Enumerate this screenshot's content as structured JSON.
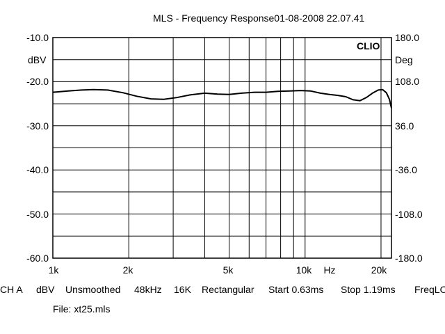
{
  "chart_data": {
    "type": "line",
    "title": "MLS - Frequency Response01-08-2008 22.07.41",
    "brand": "CLIO",
    "y_left_unit": "dBV",
    "y_right_unit": "Deg",
    "x_unit": "Hz",
    "x_scale": "log",
    "xlim": [
      1000,
      22000
    ],
    "ylim": [
      -60,
      -10
    ],
    "y_right_lim": [
      -180,
      180
    ],
    "grid": true,
    "y_ticks_left": [
      "-10.0",
      "-20.0",
      "-30.0",
      "-40.0",
      "-50.0",
      "-60.0"
    ],
    "y_ticks_right": [
      "180.0",
      "108.0",
      "36.0",
      "-36.0",
      "-108.0",
      "-180.0"
    ],
    "x_tick_labels": [
      {
        "value": 1000,
        "label": "1k"
      },
      {
        "value": 2000,
        "label": "2k"
      },
      {
        "value": 5000,
        "label": "5k"
      },
      {
        "value": 10000,
        "label": "10k"
      },
      {
        "value": 20000,
        "label": "20k"
      }
    ],
    "series": [
      {
        "color": "#000000",
        "x": [
          1000,
          1150,
          1300,
          1450,
          1650,
          1900,
          2150,
          2450,
          2750,
          3100,
          3500,
          4000,
          4500,
          5000,
          5600,
          6300,
          7000,
          7800,
          8700,
          9600,
          10500,
          11500,
          12500,
          13500,
          14500,
          15500,
          16500,
          17500,
          18500,
          19500,
          20300,
          21000,
          21600,
          22000
        ],
        "values": [
          -22.4,
          -22.1,
          -21.9,
          -21.8,
          -21.9,
          -22.5,
          -23.3,
          -23.9,
          -24.0,
          -23.6,
          -23.0,
          -22.6,
          -22.8,
          -22.9,
          -22.6,
          -22.4,
          -22.4,
          -22.2,
          -22.1,
          -22.0,
          -22.1,
          -22.6,
          -22.9,
          -23.1,
          -23.4,
          -24.1,
          -24.3,
          -23.6,
          -22.6,
          -21.9,
          -21.8,
          -22.5,
          -24.0,
          -26.0
        ]
      }
    ]
  },
  "status_bar": {
    "channel": "CH A",
    "unit": "dBV",
    "smoothing": "Unsmoothed",
    "rate": "48kHz",
    "size": "16K",
    "window": "Rectangular",
    "start": "Start 0.63ms",
    "stop": "Stop 1.19ms",
    "freq": "FreqLO"
  },
  "file_label": "File: xt25.mls"
}
